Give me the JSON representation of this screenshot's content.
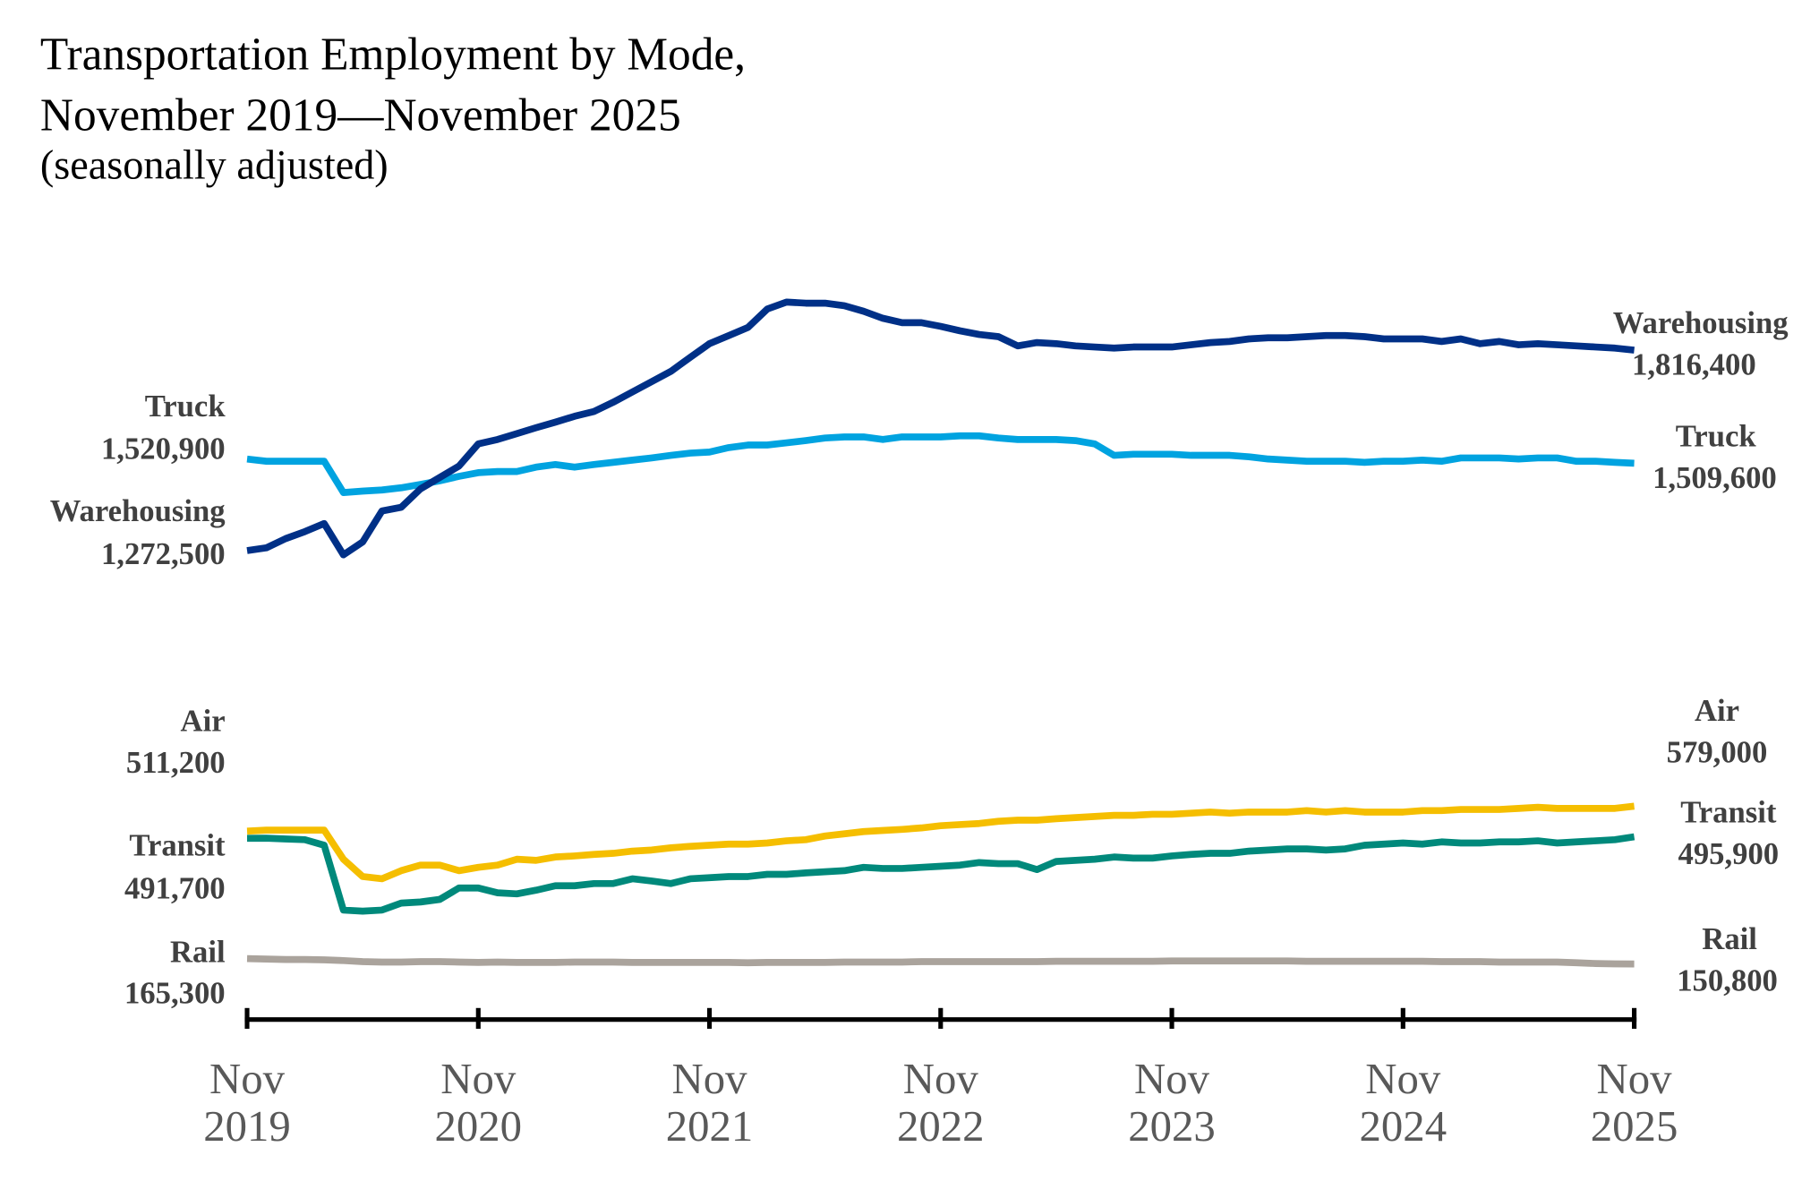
{
  "chart_data": {
    "type": "line",
    "title": [
      "Transportation Employment by Mode,",
      "November 2019—November 2025"
    ],
    "subtitle": "(seasonally adjusted)",
    "categories": [
      "Nov 2019",
      null,
      null,
      null,
      null,
      null,
      null,
      null,
      null,
      null,
      null,
      null,
      "Nov 2020",
      null,
      null,
      null,
      null,
      null,
      null,
      null,
      null,
      null,
      null,
      null,
      "Nov 2021",
      null,
      null,
      null,
      null,
      null,
      null,
      null,
      null,
      null,
      null,
      null,
      "Nov 2022",
      null,
      null,
      null,
      null,
      null,
      null,
      null,
      null,
      null,
      null,
      null,
      "Nov 2023",
      null,
      null,
      null,
      null,
      null,
      null,
      null,
      null,
      null,
      null,
      null,
      "Nov 2024",
      null,
      null,
      null,
      null,
      null,
      null,
      null,
      null,
      null,
      null,
      null,
      "Nov 2025"
    ],
    "ylim": [
      0,
      2100000
    ],
    "series": [
      {
        "name": "Warehousing",
        "color": "#003087",
        "values": [
          1272500,
          1280000,
          1305000,
          1324000,
          1346000,
          1261000,
          1296000,
          1380000,
          1390000,
          1440000,
          1471000,
          1502000,
          1562000,
          1574000,
          1590000,
          1606000,
          1621000,
          1637000,
          1650000,
          1675000,
          1703000,
          1731000,
          1759000,
          1797000,
          1834000,
          1856000,
          1878000,
          1928000,
          1947000,
          1944000,
          1944000,
          1937000,
          1922000,
          1903000,
          1891000,
          1891000,
          1881000,
          1869000,
          1859000,
          1853000,
          1828000,
          1837000,
          1834000,
          1828000,
          1825000,
          1822000,
          1825000,
          1825000,
          1825000,
          1831000,
          1837000,
          1840000,
          1847000,
          1850000,
          1850000,
          1853000,
          1856000,
          1856000,
          1853000,
          1847000,
          1847000,
          1847000,
          1840000,
          1847000,
          1834000,
          1840000,
          1831000,
          1834000,
          1831000,
          1828000,
          1825000,
          1822000,
          1816400
        ],
        "value_labels": [
          "1,272,500",
          null,
          null,
          null,
          null,
          null,
          null,
          null,
          null,
          null,
          null,
          null,
          null,
          null,
          null,
          null,
          null,
          null,
          null,
          null,
          null,
          null,
          null,
          null,
          null,
          null,
          null,
          null,
          null,
          null,
          null,
          null,
          null,
          null,
          null,
          null,
          null,
          null,
          null,
          null,
          null,
          null,
          null,
          null,
          null,
          null,
          null,
          null,
          null,
          null,
          null,
          null,
          null,
          null,
          null,
          null,
          null,
          null,
          null,
          null,
          null,
          null,
          null,
          null,
          null,
          null,
          null,
          null,
          null,
          null,
          null,
          null,
          "1,816,400"
        ]
      },
      {
        "name": "Truck",
        "color": "#00a3e0",
        "values": [
          1520900,
          1515000,
          1515000,
          1515000,
          1515000,
          1430000,
          1434000,
          1437000,
          1443000,
          1452000,
          1462000,
          1474000,
          1484000,
          1487000,
          1487000,
          1499000,
          1506000,
          1499000,
          1506000,
          1512000,
          1518000,
          1524000,
          1531000,
          1537000,
          1540000,
          1552000,
          1559000,
          1559000,
          1565000,
          1571000,
          1578000,
          1581000,
          1581000,
          1574000,
          1581000,
          1581000,
          1581000,
          1584000,
          1584000,
          1578000,
          1574000,
          1574000,
          1574000,
          1571000,
          1562000,
          1531000,
          1534000,
          1534000,
          1534000,
          1531000,
          1531000,
          1531000,
          1527000,
          1521000,
          1518000,
          1515000,
          1515000,
          1515000,
          1512000,
          1515000,
          1515000,
          1518000,
          1515000,
          1524000,
          1524000,
          1524000,
          1521000,
          1524000,
          1524000,
          1515000,
          1515000,
          1512000,
          1509600
        ],
        "value_labels": [
          "1,520,900",
          null,
          null,
          null,
          null,
          null,
          null,
          null,
          null,
          null,
          null,
          null,
          null,
          null,
          null,
          null,
          null,
          null,
          null,
          null,
          null,
          null,
          null,
          null,
          null,
          null,
          null,
          null,
          null,
          null,
          null,
          null,
          null,
          null,
          null,
          null,
          null,
          null,
          null,
          null,
          null,
          null,
          null,
          null,
          null,
          null,
          null,
          null,
          null,
          null,
          null,
          null,
          null,
          null,
          null,
          null,
          null,
          null,
          null,
          null,
          null,
          null,
          null,
          null,
          null,
          null,
          null,
          null,
          null,
          null,
          null,
          null,
          "1,509,600"
        ]
      },
      {
        "name": "Air",
        "color": "#f5be00",
        "values": [
          511200,
          514000,
          514000,
          514000,
          514000,
          435000,
          388000,
          382000,
          404000,
          419000,
          419000,
          404000,
          413000,
          419000,
          435000,
          432000,
          441000,
          444000,
          448000,
          451000,
          457000,
          460000,
          466000,
          470000,
          473000,
          476000,
          476000,
          479000,
          485000,
          488000,
          498000,
          504000,
          510000,
          513000,
          516000,
          520000,
          526000,
          529000,
          532000,
          538000,
          541000,
          541000,
          545000,
          548000,
          551000,
          554000,
          554000,
          557000,
          557000,
          560000,
          563000,
          560000,
          563000,
          563000,
          563000,
          567000,
          563000,
          567000,
          563000,
          563000,
          563000,
          567000,
          567000,
          570000,
          570000,
          570000,
          573000,
          576000,
          573000,
          573000,
          573000,
          573000,
          579000
        ],
        "value_labels": [
          "511,200",
          null,
          null,
          null,
          null,
          null,
          null,
          null,
          null,
          null,
          null,
          null,
          null,
          null,
          null,
          null,
          null,
          null,
          null,
          null,
          null,
          null,
          null,
          null,
          null,
          null,
          null,
          null,
          null,
          null,
          null,
          null,
          null,
          null,
          null,
          null,
          null,
          null,
          null,
          null,
          null,
          null,
          null,
          null,
          null,
          null,
          null,
          null,
          null,
          null,
          null,
          null,
          null,
          null,
          null,
          null,
          null,
          null,
          null,
          null,
          null,
          null,
          null,
          null,
          null,
          null,
          null,
          null,
          null,
          null,
          null,
          null,
          "579,000"
        ]
      },
      {
        "name": "Transit",
        "color": "#00897b",
        "values": [
          491700,
          492000,
          490000,
          488000,
          473000,
          297000,
          294000,
          297000,
          316000,
          319000,
          326000,
          357000,
          357000,
          344000,
          341000,
          351000,
          363000,
          363000,
          369000,
          369000,
          382000,
          376000,
          369000,
          382000,
          385000,
          388000,
          388000,
          394000,
          394000,
          398000,
          401000,
          404000,
          413000,
          410000,
          410000,
          413000,
          416000,
          419000,
          426000,
          423000,
          423000,
          407000,
          429000,
          432000,
          435000,
          441000,
          438000,
          438000,
          444000,
          448000,
          451000,
          451000,
          457000,
          460000,
          463000,
          463000,
          460000,
          463000,
          473000,
          476000,
          479000,
          476000,
          482000,
          479000,
          479000,
          482000,
          482000,
          485000,
          479000,
          482000,
          485000,
          488000,
          495900
        ],
        "value_labels": [
          "491,700",
          null,
          null,
          null,
          null,
          null,
          null,
          null,
          null,
          null,
          null,
          null,
          null,
          null,
          null,
          null,
          null,
          null,
          null,
          null,
          null,
          null,
          null,
          null,
          null,
          null,
          null,
          null,
          null,
          null,
          null,
          null,
          null,
          null,
          null,
          null,
          null,
          null,
          null,
          null,
          null,
          null,
          null,
          null,
          null,
          null,
          null,
          null,
          null,
          null,
          null,
          null,
          null,
          null,
          null,
          null,
          null,
          null,
          null,
          null,
          null,
          null,
          null,
          null,
          null,
          null,
          null,
          null,
          null,
          null,
          null,
          null,
          "495,900"
        ]
      },
      {
        "name": "Rail",
        "color": "#aaa39c",
        "values": [
          165300,
          164000,
          163000,
          163000,
          162000,
          160000,
          157000,
          156000,
          156000,
          157000,
          157000,
          156000,
          155000,
          156000,
          155000,
          155000,
          155000,
          156000,
          156000,
          156000,
          155000,
          155000,
          155000,
          155000,
          155000,
          155000,
          154000,
          155000,
          155000,
          155000,
          155000,
          156000,
          156000,
          156000,
          156000,
          157000,
          157000,
          157000,
          157000,
          157000,
          157000,
          157000,
          158000,
          158000,
          158000,
          158000,
          158000,
          158000,
          159000,
          159000,
          159000,
          159000,
          159000,
          159000,
          159000,
          158000,
          158000,
          158000,
          158000,
          158000,
          158000,
          158000,
          157000,
          157000,
          157000,
          156000,
          156000,
          156000,
          156000,
          154000,
          152000,
          151000,
          150800
        ],
        "value_labels": [
          "165,300",
          null,
          null,
          null,
          null,
          null,
          null,
          null,
          null,
          null,
          null,
          null,
          null,
          null,
          null,
          null,
          null,
          null,
          null,
          null,
          null,
          null,
          null,
          null,
          null,
          null,
          null,
          null,
          null,
          null,
          null,
          null,
          null,
          null,
          null,
          null,
          null,
          null,
          null,
          null,
          null,
          null,
          null,
          null,
          null,
          null,
          null,
          null,
          null,
          null,
          null,
          null,
          null,
          null,
          null,
          null,
          null,
          null,
          null,
          null,
          null,
          null,
          null,
          null,
          null,
          null,
          null,
          null,
          null,
          null,
          null,
          null,
          "150,800"
        ]
      }
    ]
  }
}
